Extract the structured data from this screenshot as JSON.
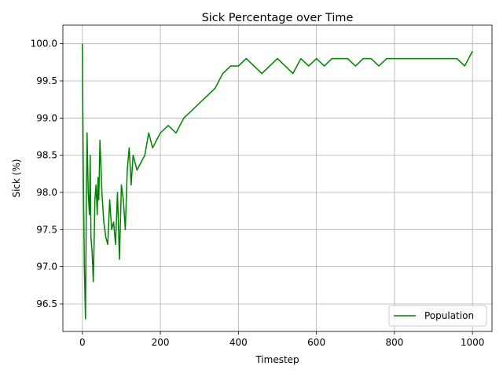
{
  "chart_data": {
    "type": "line",
    "title": "Sick Percentage over Time",
    "xlabel": "Timestep",
    "ylabel": "Sick (%)",
    "xlim": [
      -50,
      1050
    ],
    "ylim": [
      96.13,
      100.25
    ],
    "x_ticks": [
      0,
      200,
      400,
      600,
      800,
      1000
    ],
    "x_tick_labels": [
      "0",
      "200",
      "400",
      "600",
      "800",
      "1000"
    ],
    "y_ticks": [
      96.5,
      97.0,
      97.5,
      98.0,
      98.5,
      99.0,
      99.5,
      100.0
    ],
    "y_tick_labels": [
      "96.5",
      "97.0",
      "97.5",
      "98.0",
      "98.5",
      "99.0",
      "99.5",
      "100.0"
    ],
    "grid": true,
    "legend_position": "lower-right",
    "series": [
      {
        "name": "Population",
        "color": "#008000",
        "x": [
          0,
          2,
          5,
          8,
          10,
          12,
          15,
          18,
          20,
          22,
          25,
          28,
          30,
          32,
          35,
          38,
          40,
          42,
          45,
          48,
          50,
          55,
          60,
          65,
          70,
          75,
          80,
          85,
          90,
          95,
          100,
          105,
          110,
          115,
          120,
          125,
          130,
          135,
          140,
          150,
          160,
          170,
          180,
          190,
          200,
          220,
          240,
          260,
          280,
          300,
          320,
          340,
          360,
          380,
          400,
          420,
          440,
          460,
          480,
          500,
          520,
          540,
          560,
          580,
          600,
          620,
          640,
          660,
          680,
          700,
          720,
          740,
          760,
          780,
          800,
          820,
          840,
          860,
          880,
          900,
          920,
          940,
          960,
          980,
          1000
        ],
        "values": [
          100.0,
          98.5,
          97.0,
          96.3,
          97.8,
          98.8,
          98.0,
          97.7,
          98.5,
          97.4,
          97.2,
          96.8,
          97.3,
          97.9,
          98.1,
          97.7,
          98.2,
          97.9,
          98.7,
          98.3,
          98.0,
          97.6,
          97.4,
          97.3,
          97.9,
          97.5,
          97.6,
          97.3,
          98.0,
          97.1,
          98.1,
          97.9,
          97.5,
          98.3,
          98.6,
          98.1,
          98.5,
          98.4,
          98.3,
          98.4,
          98.5,
          98.8,
          98.6,
          98.7,
          98.8,
          98.9,
          98.8,
          99.0,
          99.1,
          99.2,
          99.3,
          99.4,
          99.6,
          99.7,
          99.7,
          99.8,
          99.7,
          99.6,
          99.7,
          99.8,
          99.7,
          99.6,
          99.8,
          99.7,
          99.8,
          99.7,
          99.8,
          99.8,
          99.8,
          99.7,
          99.8,
          99.8,
          99.7,
          99.8,
          99.8,
          99.8,
          99.8,
          99.8,
          99.8,
          99.8,
          99.8,
          99.8,
          99.8,
          99.7,
          99.9
        ]
      }
    ]
  }
}
